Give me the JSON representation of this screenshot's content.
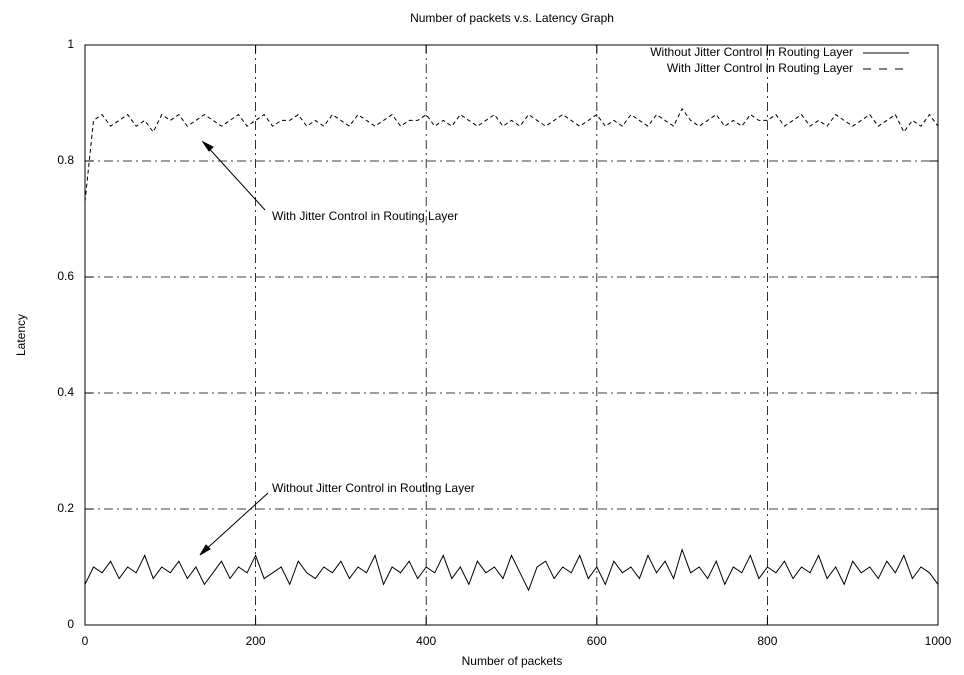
{
  "chart_data": {
    "type": "line",
    "title": "Number of packets v.s. Latency Graph",
    "x_label": "Number of packets",
    "y_label": "Latency",
    "x": [
      0,
      10,
      20,
      30,
      40,
      50,
      60,
      70,
      80,
      90,
      100,
      110,
      120,
      130,
      140,
      150,
      160,
      170,
      180,
      190,
      200,
      210,
      220,
      230,
      240,
      250,
      260,
      270,
      280,
      290,
      300,
      310,
      320,
      330,
      340,
      350,
      360,
      370,
      380,
      390,
      400,
      410,
      420,
      430,
      440,
      450,
      460,
      470,
      480,
      490,
      500,
      510,
      520,
      530,
      540,
      550,
      560,
      570,
      580,
      590,
      600,
      610,
      620,
      630,
      640,
      650,
      660,
      670,
      680,
      690,
      700,
      710,
      720,
      730,
      740,
      750,
      760,
      770,
      780,
      790,
      800,
      810,
      820,
      830,
      840,
      850,
      860,
      870,
      880,
      890,
      900,
      910,
      920,
      930,
      940,
      950,
      960,
      970,
      980,
      990,
      1000
    ],
    "series": [
      {
        "name": "Without Jitter Control in Routing Layer",
        "color": "#000000",
        "line_style": "solid",
        "values": [
          0.07,
          0.1,
          0.09,
          0.11,
          0.08,
          0.1,
          0.09,
          0.12,
          0.08,
          0.1,
          0.09,
          0.11,
          0.08,
          0.1,
          0.07,
          0.09,
          0.11,
          0.08,
          0.1,
          0.09,
          0.12,
          0.08,
          0.09,
          0.1,
          0.07,
          0.11,
          0.09,
          0.08,
          0.1,
          0.09,
          0.11,
          0.08,
          0.1,
          0.09,
          0.12,
          0.07,
          0.1,
          0.09,
          0.11,
          0.08,
          0.1,
          0.09,
          0.12,
          0.08,
          0.1,
          0.07,
          0.11,
          0.09,
          0.1,
          0.08,
          0.12,
          0.09,
          0.06,
          0.1,
          0.11,
          0.08,
          0.1,
          0.09,
          0.12,
          0.08,
          0.1,
          0.07,
          0.11,
          0.09,
          0.1,
          0.08,
          0.12,
          0.09,
          0.11,
          0.08,
          0.13,
          0.09,
          0.1,
          0.08,
          0.11,
          0.07,
          0.1,
          0.09,
          0.12,
          0.08,
          0.1,
          0.09,
          0.11,
          0.08,
          0.1,
          0.09,
          0.12,
          0.08,
          0.1,
          0.07,
          0.11,
          0.09,
          0.1,
          0.08,
          0.11,
          0.09,
          0.12,
          0.08,
          0.1,
          0.09,
          0.07
        ]
      },
      {
        "name": "With Jitter Control in Routing Layer",
        "color": "#000000",
        "line_style": "dashed",
        "values": [
          0.73,
          0.87,
          0.88,
          0.86,
          0.87,
          0.88,
          0.86,
          0.87,
          0.85,
          0.88,
          0.87,
          0.88,
          0.86,
          0.87,
          0.88,
          0.87,
          0.86,
          0.87,
          0.88,
          0.86,
          0.87,
          0.88,
          0.86,
          0.87,
          0.87,
          0.88,
          0.86,
          0.87,
          0.86,
          0.88,
          0.87,
          0.86,
          0.88,
          0.87,
          0.86,
          0.87,
          0.88,
          0.86,
          0.87,
          0.87,
          0.88,
          0.86,
          0.87,
          0.86,
          0.88,
          0.87,
          0.86,
          0.87,
          0.88,
          0.86,
          0.87,
          0.86,
          0.88,
          0.87,
          0.86,
          0.87,
          0.88,
          0.87,
          0.86,
          0.87,
          0.88,
          0.86,
          0.87,
          0.86,
          0.88,
          0.87,
          0.86,
          0.88,
          0.87,
          0.86,
          0.89,
          0.87,
          0.86,
          0.87,
          0.88,
          0.86,
          0.87,
          0.86,
          0.88,
          0.87,
          0.87,
          0.88,
          0.86,
          0.87,
          0.88,
          0.86,
          0.87,
          0.86,
          0.88,
          0.87,
          0.86,
          0.87,
          0.88,
          0.86,
          0.87,
          0.88,
          0.85,
          0.87,
          0.86,
          0.88,
          0.86
        ]
      }
    ],
    "annotations": [
      "With Jitter Control in Routing Layer",
      "Without Jitter Control in Routing Layer"
    ],
    "xlim": [
      0,
      1000
    ],
    "xticks": [
      0,
      200,
      400,
      600,
      800,
      1000
    ],
    "ylim": [
      0,
      1
    ],
    "yticks": [
      0,
      0.2,
      0.4,
      0.6,
      0.8,
      1
    ],
    "grid": true,
    "legend": "top-right"
  }
}
